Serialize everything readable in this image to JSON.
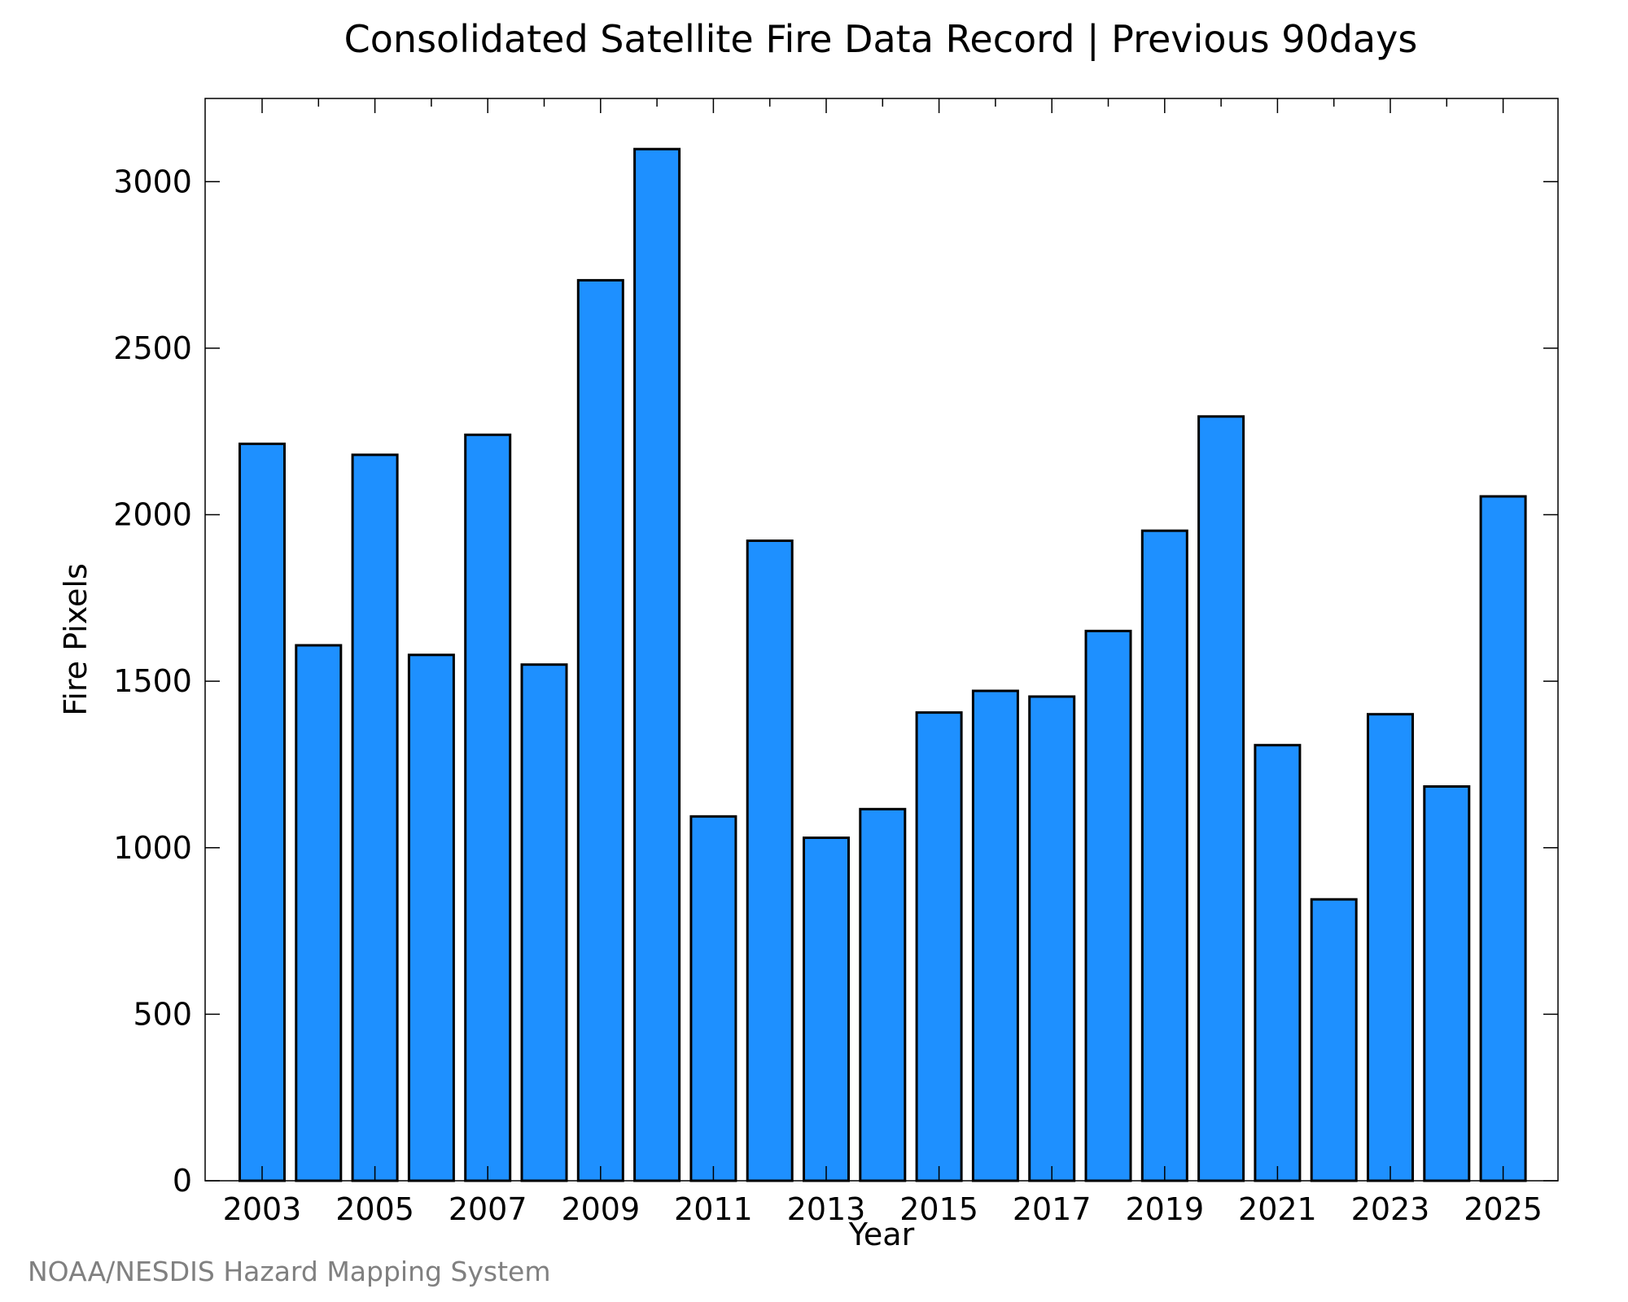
{
  "colors": {
    "bar_fill": "#1e90ff",
    "bar_stroke": "#000000",
    "credit_text": "#808080"
  },
  "credit": "NOAA/NESDIS Hazard Mapping System",
  "chart_data": {
    "type": "bar",
    "title": "Consolidated Satellite Fire Data Record | Previous 90days",
    "xlabel": "Year",
    "ylabel": "Fire Pixels",
    "categories": [
      "2003",
      "2004",
      "2005",
      "2006",
      "2007",
      "2008",
      "2009",
      "2010",
      "2011",
      "2012",
      "2013",
      "2014",
      "2015",
      "2016",
      "2017",
      "2018",
      "2019",
      "2020",
      "2021",
      "2022",
      "2023",
      "2024",
      "2025"
    ],
    "values": [
      2213,
      1608,
      2180,
      1579,
      2240,
      1550,
      2704,
      3098,
      1094,
      1922,
      1030,
      1116,
      1406,
      1471,
      1454,
      1651,
      1952,
      2295,
      1308,
      845,
      1401,
      1184,
      2055
    ],
    "x_tick_labels": [
      "2003",
      "2005",
      "2007",
      "2009",
      "2011",
      "2013",
      "2015",
      "2017",
      "2019",
      "2021",
      "2023",
      "2025"
    ],
    "y_tick_labels": [
      "0",
      "500",
      "1000",
      "1500",
      "2000",
      "2500",
      "3000"
    ],
    "ylim": [
      0,
      3250
    ],
    "grid": false,
    "legend": "none"
  }
}
